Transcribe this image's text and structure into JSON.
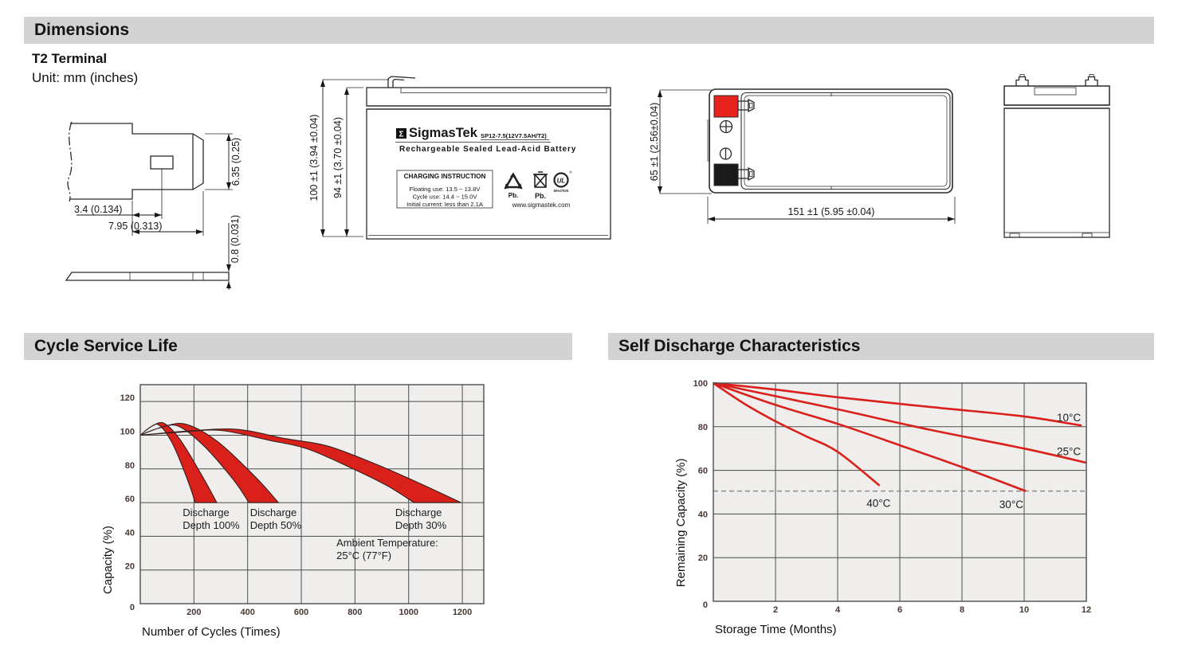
{
  "sections": {
    "dimensions": {
      "title": "Dimensions",
      "subtitle": "T2 Terminal",
      "unit_note": "Unit: mm (inches)"
    },
    "cycle_service_life": {
      "title": "Cycle Service Life"
    },
    "self_discharge": {
      "title": "Self Discharge Characteristics"
    }
  },
  "terminal_drawing": {
    "dim_hole_offset": "3.4 (0.134)",
    "dim_tab_width": "7.95 (0.313)",
    "dim_tab_height": "6.35 (0.25)",
    "dim_thickness": "0.8 (0.031)"
  },
  "front_view": {
    "dim_total_height": "100 ±1 (3.94 ±0.04)",
    "dim_case_height": "94 ±1 (3.70 ±0.04)",
    "label": {
      "logo_glyph": "Σ",
      "brand": "SigmasTek",
      "model": "SP12-7.5(12V7.5AH/T2)",
      "product_type": "Rechargeable Sealed Lead-Acid Battery",
      "charging_box": {
        "title": "CHARGING INSTRUCTION",
        "lines": [
          "Floating use: 13.5 ~ 13.8V",
          "Cycle use: 14.4 ~ 15.0V",
          "Initial current: less than 2.1A"
        ]
      },
      "recycle_label": "Pb.",
      "bin_label": "Pb.",
      "ul_text": "UL",
      "ul_reg_mark": "®",
      "ul_code": "MH47929",
      "website": "www.sigmastek.com"
    }
  },
  "top_view": {
    "dim_height": "65 ±1 (2.56±0.04)",
    "dim_width": "151 ±1 (5.95 ±0.04)"
  },
  "colors": {
    "accent_red": "#da201a",
    "terminal_positive": "#e8231d",
    "terminal_negative": "#1a1a1a",
    "section_bar_bg": "#d3d3d3",
    "chart_bg": "#efeeec"
  },
  "chart_data": [
    {
      "id": "cycle-service-life",
      "type": "area",
      "title": "Cycle Service Life",
      "xlabel": "Number of Cycles (Times)",
      "ylabel": "Capacity (%)",
      "xlim": [
        0,
        1280
      ],
      "ylim": [
        0,
        130
      ],
      "xticks": [
        200,
        400,
        600,
        800,
        1000,
        1200
      ],
      "yticks": [
        0,
        20,
        40,
        60,
        80,
        100,
        120
      ],
      "origin_label": "0",
      "grid": true,
      "legend_position": "none",
      "color": "#da201a",
      "bands": [
        {
          "name": "Discharge Depth 100%",
          "upper": [
            [
              0,
              100
            ],
            [
              45,
              105.5
            ],
            [
              90,
              107
            ],
            [
              150,
              97
            ],
            [
              230,
              76
            ],
            [
              285,
              60
            ]
          ],
          "lower": [
            [
              0,
              100
            ],
            [
              35,
              104.5
            ],
            [
              70,
              106
            ],
            [
              120,
              95
            ],
            [
              175,
              74
            ],
            [
              205,
              60
            ]
          ]
        },
        {
          "name": "Discharge Depth 50%",
          "upper": [
            [
              0,
              100
            ],
            [
              85,
              105
            ],
            [
              170,
              106.5
            ],
            [
              290,
              96
            ],
            [
              430,
              75
            ],
            [
              515,
              60
            ]
          ],
          "lower": [
            [
              0,
              100
            ],
            [
              65,
              104
            ],
            [
              140,
              105.5
            ],
            [
              235,
              94
            ],
            [
              345,
              74
            ],
            [
              405,
              60
            ]
          ]
        },
        {
          "name": "Discharge Depth 30%",
          "upper": [
            [
              0,
              100
            ],
            [
              180,
              102.5
            ],
            [
              360,
              103.5
            ],
            [
              540,
              98
            ],
            [
              700,
              93.5
            ],
            [
              890,
              82
            ],
            [
              1040,
              71.5
            ],
            [
              1195,
              60
            ]
          ],
          "lower": [
            [
              0,
              100
            ],
            [
              150,
              101.8
            ],
            [
              300,
              102.8
            ],
            [
              480,
              97
            ],
            [
              620,
              92
            ],
            [
              780,
              81
            ],
            [
              920,
              70
            ],
            [
              1020,
              60
            ]
          ]
        }
      ],
      "annotations": [
        {
          "lines": [
            "Discharge",
            "Depth 100%"
          ],
          "x": 158,
          "y": 52
        },
        {
          "lines": [
            "Discharge",
            "Depth 50%"
          ],
          "x": 409,
          "y": 52
        },
        {
          "lines": [
            "Discharge",
            "Depth 30%"
          ],
          "x": 950,
          "y": 52
        },
        {
          "lines": [
            "Ambient Temperature:",
            "25°C (77°F)"
          ],
          "x": 731,
          "y": 34
        }
      ]
    },
    {
      "id": "self-discharge",
      "type": "line",
      "title": "Self Discharge Characteristics",
      "xlabel": "Storage Time (Months)",
      "ylabel": "Remaining Capacity (%)",
      "xlim": [
        0,
        12
      ],
      "ylim": [
        0,
        100
      ],
      "xticks": [
        2,
        4,
        6,
        8,
        10,
        12
      ],
      "yticks": [
        0,
        20,
        40,
        60,
        80,
        100
      ],
      "origin_label": "0",
      "grid": true,
      "legend_position": "inline-labels",
      "color": "#da201a",
      "reference_line": {
        "y": 50.5,
        "style": "dashed"
      },
      "series": [
        {
          "name": "10°C",
          "points": [
            [
              0,
              100
            ],
            [
              2,
              97
            ],
            [
              4,
              93.5
            ],
            [
              7,
              89
            ],
            [
              10,
              84.7
            ],
            [
              11.85,
              80.5
            ]
          ],
          "label_at": [
            11.05,
            82.5
          ]
        },
        {
          "name": "25°C",
          "points": [
            [
              0,
              100
            ],
            [
              2,
              94
            ],
            [
              4,
              88
            ],
            [
              7,
              78.5
            ],
            [
              10,
              70
            ],
            [
              12,
              63.5
            ]
          ],
          "label_at": [
            11.05,
            67
          ]
        },
        {
          "name": "30°C",
          "points": [
            [
              0,
              100
            ],
            [
              2,
              90
            ],
            [
              4,
              81.3
            ],
            [
              6,
              71.5
            ],
            [
              8,
              61.5
            ],
            [
              10.05,
              50.5
            ]
          ],
          "label_at": [
            9.2,
            42.7
          ]
        },
        {
          "name": "40°C",
          "points": [
            [
              0,
              100
            ],
            [
              1,
              90.5
            ],
            [
              2,
              82.5
            ],
            [
              3,
              75.5
            ],
            [
              4,
              68.5
            ],
            [
              5.35,
              53
            ]
          ],
          "label_at": [
            4.93,
            43.2
          ]
        }
      ]
    }
  ]
}
